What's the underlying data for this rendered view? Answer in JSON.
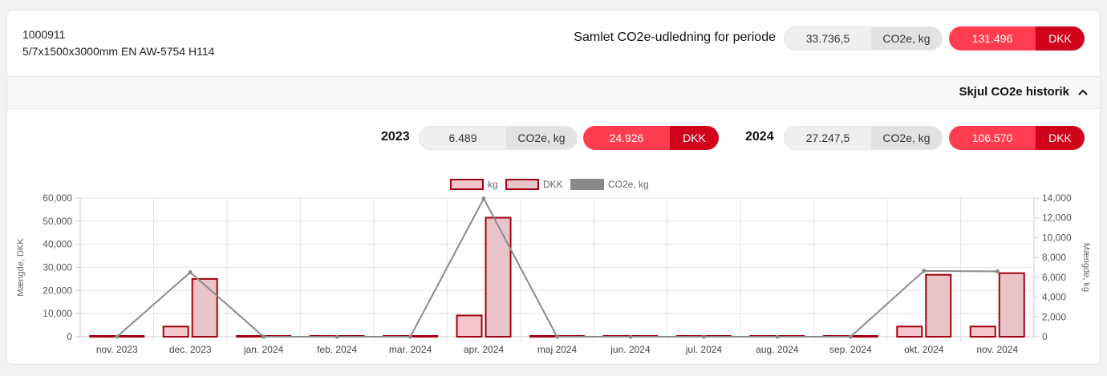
{
  "product": {
    "id": "1000911",
    "description": "5/7x1500x3000mm EN AW-5754 H114"
  },
  "total": {
    "label": "Samlet CO2e-udledning for periode",
    "co2_value": "33.736,5",
    "co2_unit": "CO2e, kg",
    "dkk_value": "131.496",
    "dkk_unit": "DKK"
  },
  "toggle": {
    "label": "Skjul CO2e historik"
  },
  "years": [
    {
      "year": "2023",
      "co2_value": "6.489",
      "co2_unit": "CO2e, kg",
      "dkk_value": "24.926",
      "dkk_unit": "DKK"
    },
    {
      "year": "2024",
      "co2_value": "27.247,5",
      "co2_unit": "CO2e, kg",
      "dkk_value": "106.570",
      "dkk_unit": "DKK"
    }
  ],
  "colors": {
    "accent_red": "#ff3d4f",
    "dark_red": "#d0021b",
    "kg_fill": "#f5c6cb",
    "dkk_fill": "#e8c4c8",
    "bar_border": "#a10010",
    "line": "#8a8a8a"
  },
  "chart_data": {
    "type": "bar",
    "categories": [
      "nov. 2023",
      "dec. 2023",
      "jan. 2024",
      "feb. 2024",
      "mar. 2024",
      "apr. 2024",
      "maj 2024",
      "jun. 2024",
      "jul. 2024",
      "aug. 2024",
      "sep. 2024",
      "okt. 2024",
      "nov. 2024"
    ],
    "series": [
      {
        "name": "kg",
        "axis": "left",
        "kind": "bar",
        "values": [
          0,
          4400,
          0,
          0,
          0,
          9200,
          0,
          0,
          0,
          0,
          0,
          4400,
          4400
        ]
      },
      {
        "name": "DKK",
        "axis": "left",
        "kind": "bar",
        "values": [
          0,
          25000,
          0,
          0,
          0,
          51500,
          0,
          0,
          0,
          0,
          0,
          26800,
          27500
        ]
      },
      {
        "name": "CO2e, kg",
        "axis": "right",
        "kind": "line",
        "values": [
          0,
          6500,
          0,
          0,
          0,
          13950,
          0,
          0,
          0,
          0,
          0,
          6650,
          6600
        ]
      }
    ],
    "ylabel": "Mængde, DKK",
    "y2label": "Mængde, kg",
    "ylim": [
      0,
      60000
    ],
    "y2lim": [
      0,
      14000
    ],
    "yticks": [
      "0",
      "10,000",
      "20,000",
      "30,000",
      "40,000",
      "50,000",
      "60,000"
    ],
    "y2ticks": [
      "0",
      "2,000",
      "4,000",
      "6,000",
      "8,000",
      "10,000",
      "12,000",
      "14,000"
    ],
    "legend": "top-center",
    "grid": true
  }
}
